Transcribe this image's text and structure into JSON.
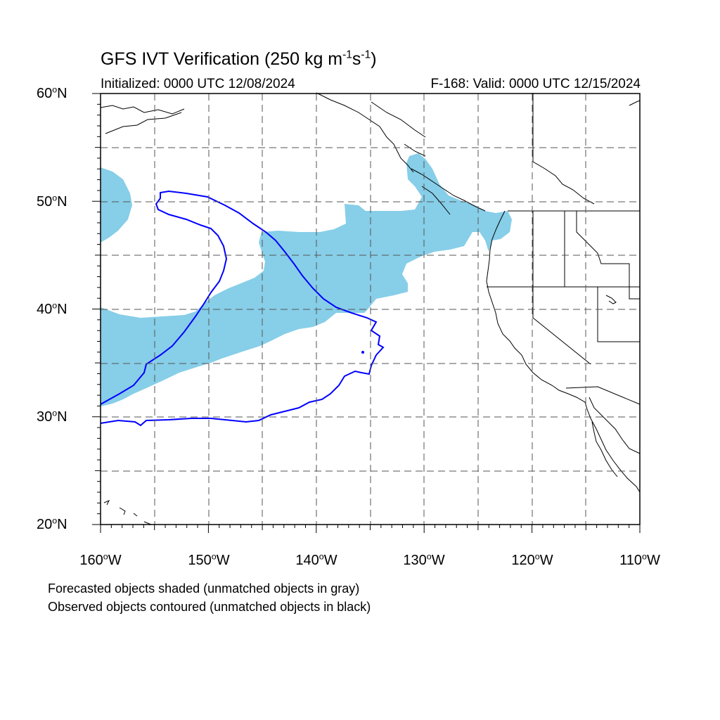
{
  "title": {
    "prefix": "GFS IVT Verification (250 kg m",
    "exp1": "-1",
    "mid": "s",
    "exp2": "-1",
    "suffix": ")"
  },
  "subtitle_left": "Initialized: 0000 UTC 12/08/2024",
  "subtitle_right": "F-168: Valid: 0000 UTC 12/15/2024",
  "lat_labels": {
    "l60": "60",
    "l50": "50",
    "l40": "40",
    "l30": "30",
    "l20": "20",
    "suffix": "N",
    "degree": "o"
  },
  "lon_labels": {
    "w160": "160",
    "w150": "150",
    "w140": "140",
    "w130": "130",
    "w120": "120",
    "w110": "110",
    "suffix": "W",
    "degree": "o"
  },
  "notes": {
    "line1": "Forecasted objects shaded (unmatched objects in gray)",
    "line2": "Observed objects contoured (unmatched objects in black)"
  },
  "colors": {
    "forecast_fill": "#87CEE8",
    "observed_contour": "#0000FF",
    "coastline": "#000000",
    "grid": "#555555"
  },
  "map": {
    "lon_range": [
      -160,
      -110
    ],
    "lat_range": [
      20,
      60
    ],
    "grid": "dashed every 5 degrees"
  }
}
